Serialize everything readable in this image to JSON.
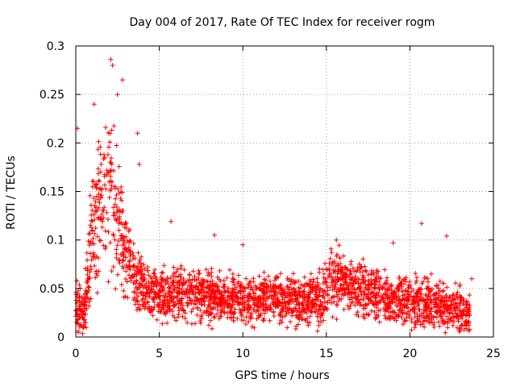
{
  "chart_data": {
    "type": "scatter",
    "title": "Day 004 of 2017, Rate Of TEC Index for receiver rogm",
    "xlabel": "GPS time / hours",
    "ylabel": "ROTI / TECUs",
    "xlim": [
      0,
      25
    ],
    "ylim": [
      0,
      0.3
    ],
    "xticks": [
      0,
      5,
      10,
      15,
      20,
      25
    ],
    "yticks": [
      0,
      0.05,
      0.1,
      0.15,
      0.2,
      0.25,
      0.3
    ],
    "xtick_labels": [
      "0",
      "5",
      "10",
      "15",
      "20",
      "25"
    ],
    "ytick_labels": [
      "0",
      "0.05",
      "0.1",
      "0.15",
      "0.2",
      "0.25",
      "0.3"
    ],
    "grid": true,
    "marker": "plus",
    "color": "#ff0000",
    "series": [
      {
        "name": "",
        "envelope": {
          "x": [
            0.0,
            0.3,
            0.5,
            0.8,
            1.0,
            1.3,
            1.6,
            2.0,
            2.3,
            2.7,
            3.0,
            3.5,
            4.0,
            4.5,
            5.0,
            6.0,
            7.0,
            8.0,
            9.0,
            10.0,
            11.0,
            12.0,
            13.0,
            14.0,
            14.8,
            15.2,
            15.5,
            16.0,
            17.0,
            18.0,
            19.0,
            20.0,
            21.0,
            22.0,
            22.5,
            23.0,
            23.6
          ],
          "mean": [
            0.03,
            0.03,
            0.025,
            0.07,
            0.11,
            0.13,
            0.14,
            0.15,
            0.13,
            0.12,
            0.09,
            0.06,
            0.05,
            0.045,
            0.045,
            0.045,
            0.042,
            0.04,
            0.04,
            0.038,
            0.038,
            0.04,
            0.038,
            0.038,
            0.04,
            0.055,
            0.06,
            0.055,
            0.05,
            0.045,
            0.04,
            0.038,
            0.035,
            0.035,
            0.03,
            0.028,
            0.025
          ],
          "spread": [
            0.02,
            0.03,
            0.02,
            0.05,
            0.07,
            0.06,
            0.06,
            0.08,
            0.07,
            0.06,
            0.04,
            0.03,
            0.025,
            0.025,
            0.025,
            0.025,
            0.025,
            0.022,
            0.022,
            0.022,
            0.022,
            0.022,
            0.022,
            0.022,
            0.025,
            0.03,
            0.03,
            0.028,
            0.025,
            0.025,
            0.022,
            0.022,
            0.022,
            0.025,
            0.022,
            0.02,
            0.018
          ]
        },
        "peaks": [
          {
            "x": 0.1,
            "y": 0.215
          },
          {
            "x": 1.1,
            "y": 0.24
          },
          {
            "x": 2.1,
            "y": 0.286
          },
          {
            "x": 2.2,
            "y": 0.28
          },
          {
            "x": 2.5,
            "y": 0.25
          },
          {
            "x": 2.8,
            "y": 0.265
          },
          {
            "x": 3.7,
            "y": 0.21
          },
          {
            "x": 3.8,
            "y": 0.178
          },
          {
            "x": 5.7,
            "y": 0.119
          },
          {
            "x": 8.3,
            "y": 0.105
          },
          {
            "x": 10.0,
            "y": 0.095
          },
          {
            "x": 15.6,
            "y": 0.1
          },
          {
            "x": 19.0,
            "y": 0.097
          },
          {
            "x": 20.7,
            "y": 0.117
          },
          {
            "x": 22.2,
            "y": 0.104
          },
          {
            "x": 23.7,
            "y": 0.06
          }
        ]
      }
    ]
  }
}
